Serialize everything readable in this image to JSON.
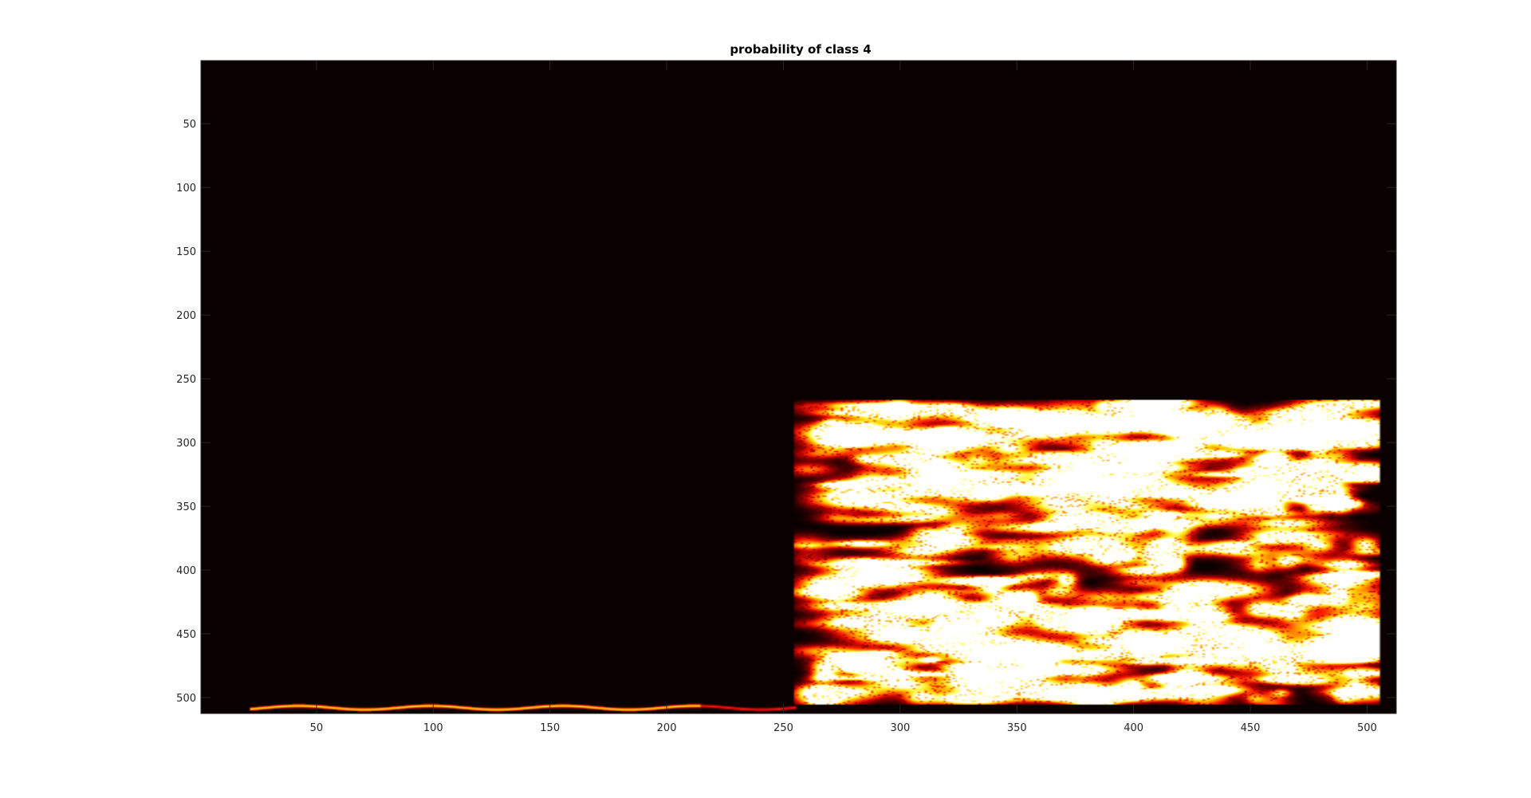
{
  "chart_data": {
    "type": "heatmap",
    "title": "probability of class 4",
    "xlabel": "",
    "ylabel": "",
    "xlim": [
      0.5,
      512.5
    ],
    "ylim": [
      0.5,
      512.5
    ],
    "y_direction": "reverse",
    "x_ticks": [
      50,
      100,
      150,
      200,
      250,
      300,
      350,
      400,
      450,
      500
    ],
    "y_ticks": [
      50,
      100,
      150,
      200,
      250,
      300,
      350,
      400,
      450,
      500
    ],
    "grid": false,
    "colorbar": false,
    "colormap": "hot",
    "value_range": [
      0,
      1
    ],
    "background_color": "#0a0000",
    "colormap_stops": [
      "#0a0000",
      "#5a0000",
      "#b00000",
      "#ff2000",
      "#ff8000",
      "#ffd000",
      "#ffff60",
      "#ffffff"
    ],
    "regions": [
      {
        "name": "high-probability block",
        "x_range": [
          255,
          505
        ],
        "y_range": [
          267,
          505
        ],
        "mean_probability": 0.55
      },
      {
        "name": "thin bottom band",
        "x_range": [
          22,
          255
        ],
        "y_range": [
          503,
          512
        ],
        "mean_probability": 0.6
      }
    ]
  }
}
